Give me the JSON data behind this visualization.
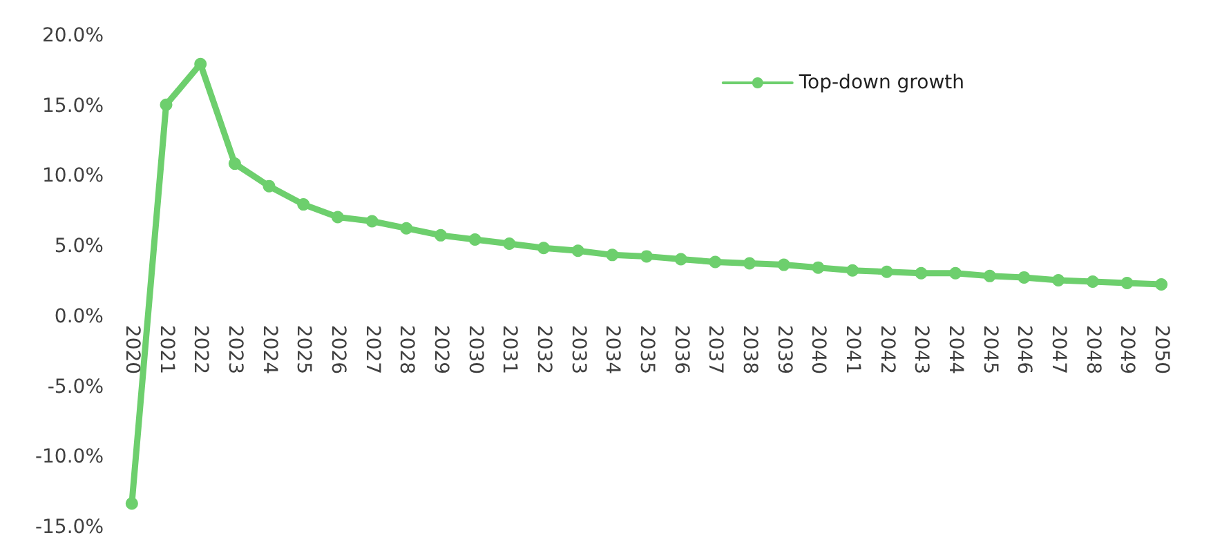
{
  "chart_data": {
    "type": "line",
    "categories": [
      "2020",
      "2021",
      "2022",
      "2023",
      "2024",
      "2025",
      "2026",
      "2027",
      "2028",
      "2029",
      "2030",
      "2031",
      "2032",
      "2033",
      "2034",
      "2035",
      "2036",
      "2037",
      "2038",
      "2039",
      "2040",
      "2041",
      "2042",
      "2043",
      "2044",
      "2045",
      "2046",
      "2047",
      "2048",
      "2049",
      "2050"
    ],
    "series": [
      {
        "name": "Top-down growth",
        "color": "#6dcf6d",
        "values": [
          -13.3,
          15.1,
          18.0,
          10.9,
          9.3,
          8.0,
          7.1,
          6.8,
          6.3,
          5.8,
          5.5,
          5.2,
          4.9,
          4.7,
          4.4,
          4.3,
          4.1,
          3.9,
          3.8,
          3.7,
          3.5,
          3.3,
          3.2,
          3.1,
          3.1,
          2.9,
          2.8,
          2.6,
          2.5,
          2.4,
          2.3
        ]
      }
    ],
    "ylim": [
      -15,
      20
    ],
    "yticks": [
      {
        "value": -15,
        "label": "-15.0%"
      },
      {
        "value": -10,
        "label": "-10.0%"
      },
      {
        "value": -5,
        "label": "-5.0%"
      },
      {
        "value": 0,
        "label": "0.0%"
      },
      {
        "value": 5,
        "label": "5.0%"
      },
      {
        "value": 10,
        "label": "10.0%"
      },
      {
        "value": 15,
        "label": "15.0%"
      },
      {
        "value": 20,
        "label": "20.0%"
      }
    ],
    "grid": false,
    "legend": "top right",
    "marker": "circle",
    "line_style": "solid"
  }
}
